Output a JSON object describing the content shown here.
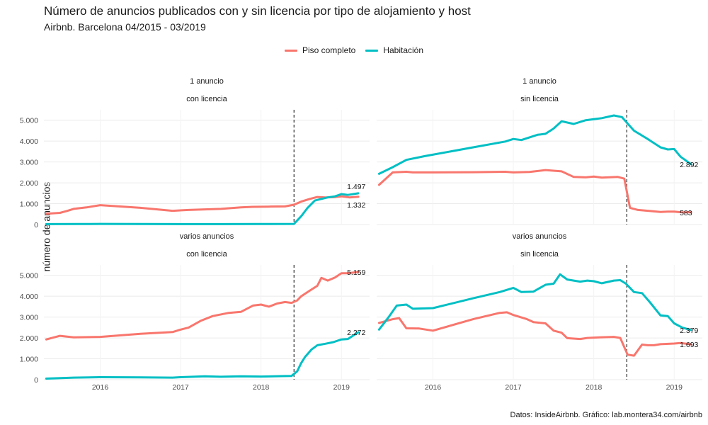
{
  "chart_data": {
    "type": "line",
    "title": "Número de anuncios publicados con y sin licencia por tipo de alojamiento y host",
    "subtitle": "Airbnb. Barcelona 04/2015 - 03/2019",
    "ylabel": "número de anuncios",
    "caption": "Datos: InsideAirbnb. Gráfico: lab.montera34.com/airbnb",
    "x_range": [
      2015.3,
      2019.35
    ],
    "x_ticks": [
      2016,
      2017,
      2018,
      2019
    ],
    "x_tick_labels": [
      "2016",
      "2017",
      "2018",
      "2019"
    ],
    "y_range": [
      0,
      5500
    ],
    "y_ticks": [
      0,
      1000,
      2000,
      3000,
      4000,
      5000
    ],
    "y_tick_labels": [
      "0",
      "1.000",
      "2.000",
      "3.000",
      "4.000",
      "5.000"
    ],
    "vline_x": 2018.41,
    "grid": true,
    "legend_position": "top",
    "series_meta": [
      {
        "name": "Piso completo",
        "color": "#F8766D"
      },
      {
        "name": "Habitación",
        "color": "#00BFC4"
      }
    ],
    "panels": [
      {
        "strip1": "1 anuncio",
        "strip2": "con licencia",
        "series": [
          {
            "name": "Piso completo",
            "color": "#F8766D",
            "points": [
              [
                2015.33,
                520
              ],
              [
                2015.5,
                560
              ],
              [
                2015.58,
                640
              ],
              [
                2015.67,
                750
              ],
              [
                2015.83,
                820
              ],
              [
                2016.0,
                930
              ],
              [
                2016.5,
                800
              ],
              [
                2016.9,
                660
              ],
              [
                2017.1,
                700
              ],
              [
                2017.5,
                750
              ],
              [
                2017.75,
                820
              ],
              [
                2017.9,
                850
              ],
              [
                2018.1,
                860
              ],
              [
                2018.3,
                870
              ],
              [
                2018.41,
                950
              ],
              [
                2018.5,
                1100
              ],
              [
                2018.6,
                1220
              ],
              [
                2018.7,
                1320
              ],
              [
                2018.8,
                1300
              ],
              [
                2018.9,
                1310
              ],
              [
                2019.0,
                1350
              ],
              [
                2019.1,
                1300
              ],
              [
                2019.21,
                1332
              ]
            ]
          },
          {
            "name": "Habitación",
            "color": "#00BFC4",
            "points": [
              [
                2015.33,
                20
              ],
              [
                2015.75,
                25
              ],
              [
                2016.0,
                30
              ],
              [
                2016.5,
                25
              ],
              [
                2017.0,
                20
              ],
              [
                2017.5,
                20
              ],
              [
                2018.0,
                25
              ],
              [
                2018.41,
                30
              ],
              [
                2018.5,
                400
              ],
              [
                2018.58,
                800
              ],
              [
                2018.67,
                1150
              ],
              [
                2018.83,
                1300
              ],
              [
                2018.92,
                1350
              ],
              [
                2019.0,
                1460
              ],
              [
                2019.08,
                1420
              ],
              [
                2019.21,
                1497
              ]
            ]
          }
        ],
        "labels": [
          {
            "text": "1.497",
            "x": 2019.21,
            "y": 1497,
            "side": "above"
          },
          {
            "text": "1.332",
            "x": 2019.21,
            "y": 1332,
            "side": "below"
          }
        ]
      },
      {
        "strip1": "1 anuncio",
        "strip2": "sin licencia",
        "series": [
          {
            "name": "Piso completo",
            "color": "#F8766D",
            "points": [
              [
                2015.33,
                1900
              ],
              [
                2015.5,
                2500
              ],
              [
                2015.67,
                2530
              ],
              [
                2015.75,
                2500
              ],
              [
                2016.0,
                2500
              ],
              [
                2016.5,
                2510
              ],
              [
                2016.9,
                2530
              ],
              [
                2017.0,
                2500
              ],
              [
                2017.2,
                2520
              ],
              [
                2017.4,
                2610
              ],
              [
                2017.6,
                2550
              ],
              [
                2017.75,
                2280
              ],
              [
                2017.9,
                2260
              ],
              [
                2018.0,
                2300
              ],
              [
                2018.1,
                2250
              ],
              [
                2018.3,
                2280
              ],
              [
                2018.38,
                2200
              ],
              [
                2018.45,
                800
              ],
              [
                2018.55,
                700
              ],
              [
                2018.7,
                650
              ],
              [
                2018.83,
                600
              ],
              [
                2018.92,
                620
              ],
              [
                2019.0,
                620
              ],
              [
                2019.08,
                590
              ],
              [
                2019.21,
                583
              ]
            ]
          },
          {
            "name": "Habitación",
            "color": "#00BFC4",
            "points": [
              [
                2015.33,
                2430
              ],
              [
                2015.5,
                2750
              ],
              [
                2015.67,
                3100
              ],
              [
                2015.9,
                3280
              ],
              [
                2016.5,
                3700
              ],
              [
                2016.9,
                3980
              ],
              [
                2017.0,
                4100
              ],
              [
                2017.1,
                4050
              ],
              [
                2017.3,
                4300
              ],
              [
                2017.4,
                4350
              ],
              [
                2017.5,
                4600
              ],
              [
                2017.6,
                4950
              ],
              [
                2017.75,
                4820
              ],
              [
                2017.9,
                5000
              ],
              [
                2018.0,
                5050
              ],
              [
                2018.1,
                5100
              ],
              [
                2018.25,
                5230
              ],
              [
                2018.35,
                5150
              ],
              [
                2018.5,
                4500
              ],
              [
                2018.67,
                4100
              ],
              [
                2018.83,
                3700
              ],
              [
                2018.92,
                3600
              ],
              [
                2019.0,
                3620
              ],
              [
                2019.08,
                3250
              ],
              [
                2019.21,
                2892
              ]
            ]
          }
        ],
        "labels": [
          {
            "text": "2.892",
            "x": 2019.21,
            "y": 2892,
            "side": "center"
          },
          {
            "text": "583",
            "x": 2019.21,
            "y": 583,
            "side": "center"
          }
        ]
      },
      {
        "strip1": "varios anuncios",
        "strip2": "con licencia",
        "series": [
          {
            "name": "Piso completo",
            "color": "#F8766D",
            "points": [
              [
                2015.33,
                1930
              ],
              [
                2015.5,
                2100
              ],
              [
                2015.67,
                2030
              ],
              [
                2016.0,
                2050
              ],
              [
                2016.5,
                2200
              ],
              [
                2016.9,
                2280
              ],
              [
                2017.0,
                2400
              ],
              [
                2017.1,
                2500
              ],
              [
                2017.25,
                2820
              ],
              [
                2017.4,
                3050
              ],
              [
                2017.6,
                3200
              ],
              [
                2017.75,
                3250
              ],
              [
                2017.9,
                3550
              ],
              [
                2018.0,
                3600
              ],
              [
                2018.1,
                3500
              ],
              [
                2018.2,
                3650
              ],
              [
                2018.3,
                3720
              ],
              [
                2018.38,
                3680
              ],
              [
                2018.45,
                3800
              ],
              [
                2018.5,
                4000
              ],
              [
                2018.6,
                4250
              ],
              [
                2018.7,
                4500
              ],
              [
                2018.75,
                4880
              ],
              [
                2018.83,
                4750
              ],
              [
                2018.92,
                4900
              ],
              [
                2019.0,
                5100
              ],
              [
                2019.08,
                5100
              ],
              [
                2019.21,
                5159
              ]
            ]
          },
          {
            "name": "Habitación",
            "color": "#00BFC4",
            "points": [
              [
                2015.33,
                50
              ],
              [
                2015.67,
                100
              ],
              [
                2016.0,
                120
              ],
              [
                2016.5,
                110
              ],
              [
                2016.9,
                100
              ],
              [
                2017.0,
                120
              ],
              [
                2017.3,
                160
              ],
              [
                2017.5,
                140
              ],
              [
                2017.75,
                160
              ],
              [
                2018.0,
                150
              ],
              [
                2018.25,
                170
              ],
              [
                2018.38,
                180
              ],
              [
                2018.45,
                400
              ],
              [
                2018.5,
                800
              ],
              [
                2018.55,
                1100
              ],
              [
                2018.63,
                1450
              ],
              [
                2018.7,
                1650
              ],
              [
                2018.8,
                1720
              ],
              [
                2018.9,
                1800
              ],
              [
                2019.0,
                1930
              ],
              [
                2019.08,
                1950
              ],
              [
                2019.21,
                2272
              ]
            ]
          }
        ],
        "labels": [
          {
            "text": "5.159",
            "x": 2019.21,
            "y": 5159,
            "side": "center"
          },
          {
            "text": "2.272",
            "x": 2019.21,
            "y": 2272,
            "side": "center"
          }
        ]
      },
      {
        "strip1": "varios anuncios",
        "strip2": "sin licencia",
        "series": [
          {
            "name": "Piso completo",
            "color": "#F8766D",
            "points": [
              [
                2015.33,
                2720
              ],
              [
                2015.5,
                2900
              ],
              [
                2015.58,
                2950
              ],
              [
                2015.67,
                2460
              ],
              [
                2015.83,
                2450
              ],
              [
                2016.0,
                2350
              ],
              [
                2016.5,
                2900
              ],
              [
                2016.83,
                3200
              ],
              [
                2016.92,
                3230
              ],
              [
                2017.0,
                3100
              ],
              [
                2017.17,
                2900
              ],
              [
                2017.25,
                2760
              ],
              [
                2017.4,
                2700
              ],
              [
                2017.5,
                2350
              ],
              [
                2017.6,
                2250
              ],
              [
                2017.67,
                1990
              ],
              [
                2017.83,
                1950
              ],
              [
                2017.92,
                2000
              ],
              [
                2018.08,
                2030
              ],
              [
                2018.25,
                2050
              ],
              [
                2018.33,
                2000
              ],
              [
                2018.42,
                1200
              ],
              [
                2018.5,
                1150
              ],
              [
                2018.6,
                1680
              ],
              [
                2018.67,
                1650
              ],
              [
                2018.75,
                1650
              ],
              [
                2018.83,
                1700
              ],
              [
                2019.0,
                1730
              ],
              [
                2019.08,
                1760
              ],
              [
                2019.21,
                1693
              ]
            ]
          },
          {
            "name": "Habitación",
            "color": "#00BFC4",
            "points": [
              [
                2015.33,
                2400
              ],
              [
                2015.45,
                3000
              ],
              [
                2015.55,
                3550
              ],
              [
                2015.67,
                3600
              ],
              [
                2015.75,
                3400
              ],
              [
                2016.0,
                3430
              ],
              [
                2016.5,
                3900
              ],
              [
                2016.83,
                4200
              ],
              [
                2017.0,
                4400
              ],
              [
                2017.1,
                4200
              ],
              [
                2017.25,
                4220
              ],
              [
                2017.4,
                4550
              ],
              [
                2017.5,
                4600
              ],
              [
                2017.58,
                5050
              ],
              [
                2017.67,
                4800
              ],
              [
                2017.83,
                4700
              ],
              [
                2017.92,
                4750
              ],
              [
                2018.0,
                4720
              ],
              [
                2018.1,
                4620
              ],
              [
                2018.25,
                4750
              ],
              [
                2018.33,
                4770
              ],
              [
                2018.4,
                4600
              ],
              [
                2018.5,
                4200
              ],
              [
                2018.6,
                4150
              ],
              [
                2018.7,
                3700
              ],
              [
                2018.83,
                3080
              ],
              [
                2018.92,
                3050
              ],
              [
                2019.0,
                2700
              ],
              [
                2019.1,
                2500
              ],
              [
                2019.21,
                2379
              ]
            ]
          }
        ],
        "labels": [
          {
            "text": "2.379",
            "x": 2019.21,
            "y": 2379,
            "side": "center"
          },
          {
            "text": "1.693",
            "x": 2019.21,
            "y": 1693,
            "side": "center"
          }
        ]
      }
    ]
  }
}
